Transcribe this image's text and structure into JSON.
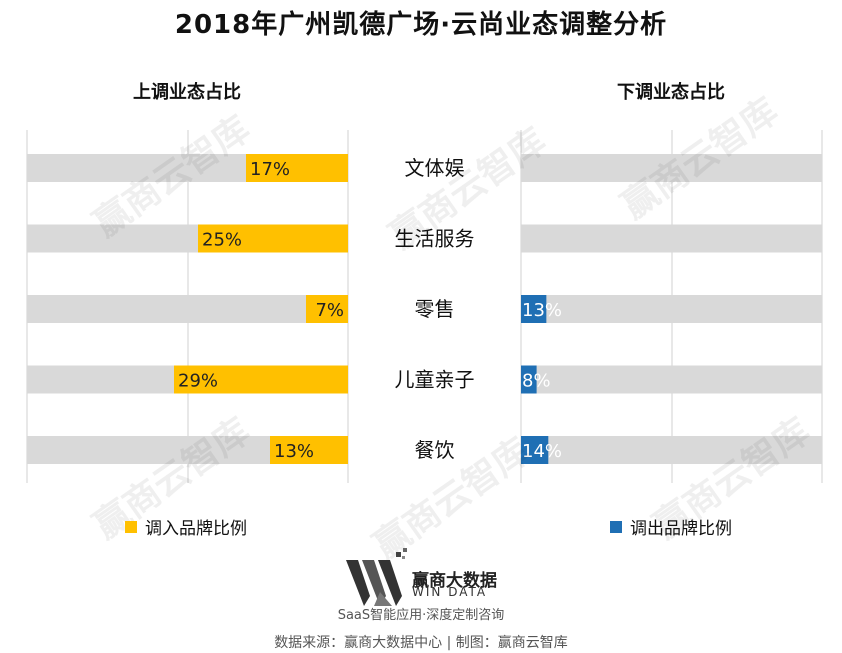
{
  "header": {
    "title": "2018年广州凯德广场·云尚业态调整分析"
  },
  "left_panel": {
    "heading": "上调业态占比"
  },
  "right_panel": {
    "heading": "下调业态占比"
  },
  "colors": {
    "in": "#FFC000",
    "out": "#1F6FB4",
    "track": "#D9D9D9",
    "grid": "#D0D0D0"
  },
  "chart_data": {
    "type": "bar",
    "categories": [
      "文体娱",
      "生活服务",
      "零售",
      "儿童亲子",
      "餐饮"
    ],
    "series": [
      {
        "name": "调入品牌比例",
        "values": [
          17,
          25,
          7,
          29,
          13
        ],
        "labels": [
          "17%",
          "25%",
          "7%",
          "29%",
          "13%"
        ]
      },
      {
        "name": "调出品牌比例",
        "values": [
          null,
          null,
          13,
          8,
          14
        ],
        "labels": [
          "",
          "",
          "13%",
          "8%",
          "14%"
        ]
      }
    ],
    "unit": "%"
  },
  "legend": {
    "in_label": "调入品牌比例",
    "out_label": "调出品牌比例"
  },
  "watermark": "赢商云智库",
  "branding": {
    "logo_name": "赢商大数据",
    "logo_en": "WIN DATA",
    "tagline": "SaaS智能应用·深度定制咨询",
    "source": "数据来源：赢商大数据中心 | 制图：赢商云智库"
  }
}
